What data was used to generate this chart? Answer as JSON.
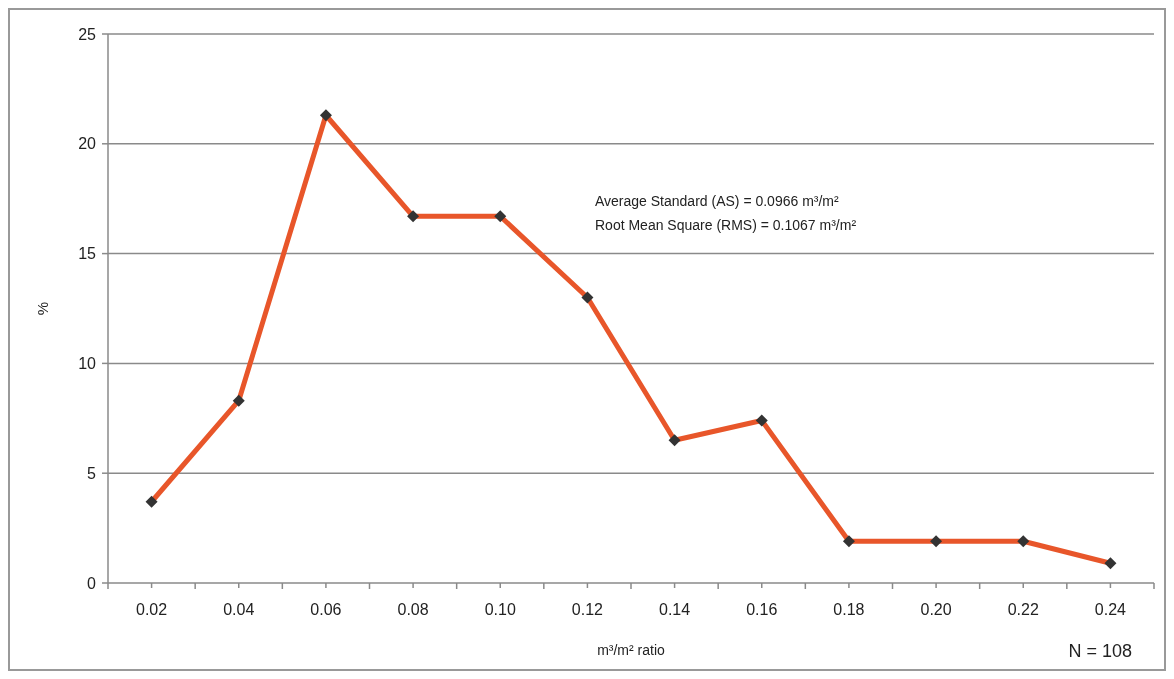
{
  "chart_data": {
    "type": "line",
    "xlabel": "m³/m² ratio",
    "ylabel": "%",
    "categories": [
      "0.02",
      "0.04",
      "0.06",
      "0.08",
      "0.10",
      "0.12",
      "0.14",
      "0.16",
      "0.18",
      "0.20",
      "0.22",
      "0.24"
    ],
    "series": [
      {
        "color": "#e8562a",
        "values": [
          3.7,
          8.3,
          21.3,
          16.7,
          16.7,
          13.0,
          6.5,
          7.4,
          1.9,
          1.9,
          1.9,
          0.9
        ]
      }
    ],
    "ylim": [
      0,
      25
    ],
    "yticks": [
      0,
      5,
      10,
      15,
      20,
      25
    ],
    "grid": "y",
    "marker": "diamond",
    "line_style": "solid",
    "annotations": [
      "Average Standard (AS) = 0.0966 m³/m²",
      "Root Mean Square (RMS) = 0.1067 m³/m²",
      "N = 108"
    ]
  }
}
